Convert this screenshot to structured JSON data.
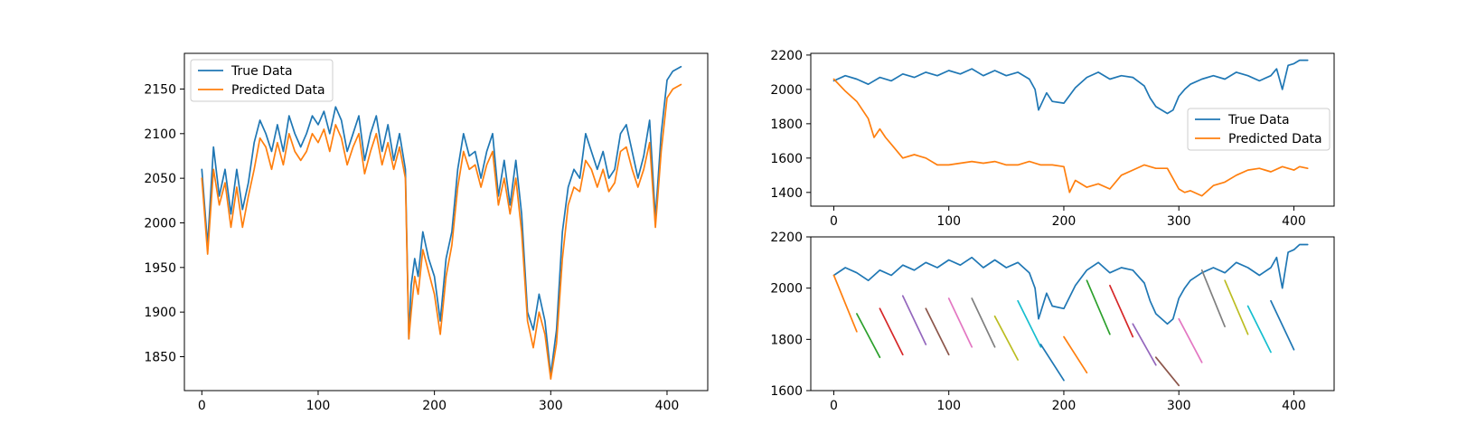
{
  "chart_data": [
    {
      "type": "line",
      "x_ticks": [
        "0",
        "100",
        "200",
        "300",
        "400"
      ],
      "y_ticks": [
        "1850",
        "1900",
        "1950",
        "2000",
        "2050",
        "2100",
        "2150"
      ],
      "xlim": [
        -15,
        435
      ],
      "ylim": [
        1812,
        2190
      ],
      "legend": "top-left",
      "grid": false,
      "series": [
        {
          "name": "True Data",
          "color": "#1f77b4",
          "x": [
            0,
            5,
            10,
            15,
            20,
            25,
            30,
            35,
            40,
            45,
            50,
            55,
            60,
            65,
            70,
            75,
            80,
            85,
            90,
            95,
            100,
            105,
            110,
            115,
            120,
            125,
            130,
            135,
            140,
            145,
            150,
            155,
            160,
            165,
            170,
            175,
            178,
            180,
            183,
            186,
            190,
            195,
            200,
            205,
            210,
            215,
            220,
            225,
            230,
            235,
            240,
            245,
            250,
            255,
            260,
            265,
            270,
            275,
            280,
            285,
            290,
            295,
            300,
            305,
            310,
            315,
            320,
            325,
            330,
            335,
            340,
            345,
            350,
            355,
            360,
            365,
            370,
            375,
            380,
            385,
            390,
            395,
            400,
            405,
            412
          ],
          "y": [
            2060,
            1975,
            2085,
            2030,
            2060,
            2010,
            2060,
            2015,
            2045,
            2090,
            2115,
            2100,
            2080,
            2110,
            2080,
            2120,
            2100,
            2085,
            2100,
            2120,
            2110,
            2125,
            2100,
            2130,
            2115,
            2080,
            2100,
            2120,
            2070,
            2100,
            2120,
            2080,
            2110,
            2070,
            2100,
            2060,
            1870,
            1930,
            1960,
            1940,
            1990,
            1960,
            1940,
            1890,
            1960,
            1990,
            2060,
            2100,
            2075,
            2080,
            2050,
            2080,
            2100,
            2030,
            2070,
            2020,
            2070,
            2010,
            1900,
            1880,
            1920,
            1890,
            1830,
            1880,
            1990,
            2040,
            2060,
            2050,
            2100,
            2080,
            2060,
            2080,
            2050,
            2060,
            2100,
            2110,
            2080,
            2050,
            2075,
            2115,
            2005,
            2100,
            2160,
            2170,
            2175
          ]
        },
        {
          "name": "Predicted Data",
          "color": "#ff7f0e",
          "x": [
            0,
            5,
            10,
            15,
            20,
            25,
            30,
            35,
            40,
            45,
            50,
            55,
            60,
            65,
            70,
            75,
            80,
            85,
            90,
            95,
            100,
            105,
            110,
            115,
            120,
            125,
            130,
            135,
            140,
            145,
            150,
            155,
            160,
            165,
            170,
            175,
            178,
            180,
            183,
            186,
            190,
            195,
            200,
            205,
            210,
            215,
            220,
            225,
            230,
            235,
            240,
            245,
            250,
            255,
            260,
            265,
            270,
            275,
            280,
            285,
            290,
            295,
            300,
            305,
            310,
            315,
            320,
            325,
            330,
            335,
            340,
            345,
            350,
            355,
            360,
            365,
            370,
            375,
            380,
            385,
            390,
            395,
            400,
            405,
            412
          ],
          "y": [
            2050,
            1965,
            2060,
            2020,
            2045,
            1995,
            2040,
            1995,
            2030,
            2060,
            2095,
            2085,
            2060,
            2090,
            2065,
            2100,
            2080,
            2070,
            2080,
            2100,
            2090,
            2105,
            2080,
            2110,
            2095,
            2065,
            2085,
            2100,
            2055,
            2080,
            2100,
            2065,
            2090,
            2060,
            2085,
            2050,
            1870,
            1900,
            1940,
            1920,
            1970,
            1945,
            1920,
            1875,
            1940,
            1975,
            2040,
            2080,
            2060,
            2065,
            2040,
            2065,
            2080,
            2020,
            2050,
            2010,
            2050,
            1990,
            1890,
            1860,
            1900,
            1875,
            1825,
            1865,
            1960,
            2020,
            2040,
            2035,
            2070,
            2060,
            2040,
            2060,
            2035,
            2045,
            2080,
            2085,
            2060,
            2040,
            2060,
            2090,
            1995,
            2080,
            2140,
            2150,
            2155
          ]
        }
      ]
    },
    {
      "type": "line",
      "x_ticks": [
        "0",
        "100",
        "200",
        "300",
        "400"
      ],
      "y_ticks": [
        "1400",
        "1600",
        "1800",
        "2000",
        "2200"
      ],
      "xlim": [
        -20,
        435
      ],
      "ylim": [
        1320,
        2210
      ],
      "legend": "center-right",
      "grid": false,
      "series": [
        {
          "name": "True Data",
          "color": "#1f77b4",
          "x": [
            0,
            10,
            20,
            30,
            40,
            50,
            60,
            70,
            80,
            90,
            100,
            110,
            120,
            130,
            140,
            150,
            160,
            170,
            175,
            178,
            185,
            190,
            200,
            210,
            220,
            230,
            240,
            250,
            260,
            270,
            275,
            280,
            290,
            295,
            300,
            305,
            310,
            320,
            330,
            340,
            350,
            360,
            370,
            380,
            385,
            390,
            395,
            400,
            405,
            412
          ],
          "y": [
            2050,
            2080,
            2060,
            2030,
            2070,
            2050,
            2090,
            2070,
            2100,
            2080,
            2110,
            2090,
            2120,
            2080,
            2110,
            2080,
            2100,
            2060,
            2000,
            1880,
            1980,
            1930,
            1920,
            2010,
            2070,
            2100,
            2060,
            2080,
            2070,
            2020,
            1950,
            1900,
            1860,
            1880,
            1960,
            2000,
            2030,
            2060,
            2080,
            2060,
            2100,
            2080,
            2050,
            2080,
            2120,
            2000,
            2140,
            2150,
            2170,
            2170
          ]
        },
        {
          "name": "Predicted Data",
          "color": "#ff7f0e",
          "x": [
            0,
            10,
            20,
            30,
            35,
            40,
            45,
            50,
            60,
            70,
            80,
            90,
            100,
            110,
            120,
            130,
            140,
            150,
            160,
            170,
            180,
            190,
            200,
            205,
            210,
            220,
            230,
            240,
            250,
            260,
            270,
            280,
            290,
            300,
            305,
            310,
            320,
            330,
            340,
            350,
            360,
            370,
            380,
            390,
            400,
            405,
            412
          ],
          "y": [
            2060,
            1990,
            1930,
            1830,
            1720,
            1770,
            1720,
            1680,
            1600,
            1620,
            1600,
            1560,
            1560,
            1570,
            1580,
            1570,
            1580,
            1560,
            1560,
            1580,
            1560,
            1560,
            1550,
            1400,
            1470,
            1430,
            1450,
            1420,
            1500,
            1530,
            1560,
            1540,
            1540,
            1420,
            1400,
            1410,
            1380,
            1440,
            1460,
            1500,
            1530,
            1540,
            1520,
            1550,
            1530,
            1550,
            1540
          ]
        }
      ]
    },
    {
      "type": "line",
      "x_ticks": [
        "0",
        "100",
        "200",
        "300",
        "400"
      ],
      "y_ticks": [
        "1600",
        "1800",
        "2000",
        "2200"
      ],
      "xlim": [
        -20,
        435
      ],
      "ylim": [
        1600,
        2200
      ],
      "legend": "none",
      "grid": false,
      "series": [
        {
          "color": "#1f77b4",
          "x": [
            0,
            10,
            20,
            30,
            40,
            50,
            60,
            70,
            80,
            90,
            100,
            110,
            120,
            130,
            140,
            150,
            160,
            170,
            175,
            178,
            185,
            190,
            200,
            210,
            220,
            230,
            240,
            250,
            260,
            270,
            275,
            280,
            290,
            295,
            300,
            305,
            310,
            320,
            330,
            340,
            350,
            360,
            370,
            380,
            385,
            390,
            395,
            400,
            405,
            412
          ],
          "y": [
            2050,
            2080,
            2060,
            2030,
            2070,
            2050,
            2090,
            2070,
            2100,
            2080,
            2110,
            2090,
            2120,
            2080,
            2110,
            2080,
            2100,
            2060,
            2000,
            1880,
            1980,
            1930,
            1920,
            2010,
            2070,
            2100,
            2060,
            2080,
            2070,
            2020,
            1950,
            1900,
            1860,
            1880,
            1960,
            2000,
            2030,
            2060,
            2080,
            2060,
            2100,
            2080,
            2050,
            2080,
            2120,
            2000,
            2140,
            2150,
            2170,
            2170
          ]
        },
        {
          "color": "#ff7f0e",
          "x": [
            0,
            20
          ],
          "y": [
            2050,
            1830
          ]
        },
        {
          "color": "#2ca02c",
          "x": [
            20,
            40
          ],
          "y": [
            1900,
            1730
          ]
        },
        {
          "color": "#d62728",
          "x": [
            40,
            60
          ],
          "y": [
            1920,
            1740
          ]
        },
        {
          "color": "#9467bd",
          "x": [
            60,
            80
          ],
          "y": [
            1970,
            1780
          ]
        },
        {
          "color": "#8c564b",
          "x": [
            80,
            100
          ],
          "y": [
            1920,
            1740
          ]
        },
        {
          "color": "#e377c2",
          "x": [
            100,
            120
          ],
          "y": [
            1960,
            1770
          ]
        },
        {
          "color": "#7f7f7f",
          "x": [
            120,
            140
          ],
          "y": [
            1960,
            1770
          ]
        },
        {
          "color": "#bcbd22",
          "x": [
            140,
            160
          ],
          "y": [
            1890,
            1720
          ]
        },
        {
          "color": "#17becf",
          "x": [
            160,
            180
          ],
          "y": [
            1950,
            1770
          ]
        },
        {
          "color": "#1f77b4",
          "x": [
            180,
            200
          ],
          "y": [
            1780,
            1640
          ]
        },
        {
          "color": "#ff7f0e",
          "x": [
            200,
            220
          ],
          "y": [
            1810,
            1670
          ]
        },
        {
          "color": "#2ca02c",
          "x": [
            220,
            240
          ],
          "y": [
            2030,
            1820
          ]
        },
        {
          "color": "#d62728",
          "x": [
            240,
            260
          ],
          "y": [
            2010,
            1810
          ]
        },
        {
          "color": "#9467bd",
          "x": [
            260,
            280
          ],
          "y": [
            1860,
            1700
          ]
        },
        {
          "color": "#8c564b",
          "x": [
            280,
            300
          ],
          "y": [
            1730,
            1620
          ]
        },
        {
          "color": "#e377c2",
          "x": [
            300,
            320
          ],
          "y": [
            1880,
            1710
          ]
        },
        {
          "color": "#7f7f7f",
          "x": [
            320,
            340
          ],
          "y": [
            2070,
            1850
          ]
        },
        {
          "color": "#bcbd22",
          "x": [
            340,
            360
          ],
          "y": [
            2030,
            1820
          ]
        },
        {
          "color": "#17becf",
          "x": [
            360,
            380
          ],
          "y": [
            1930,
            1750
          ]
        },
        {
          "color": "#1f77b4",
          "x": [
            380,
            400
          ],
          "y": [
            1950,
            1760
          ]
        }
      ]
    }
  ]
}
